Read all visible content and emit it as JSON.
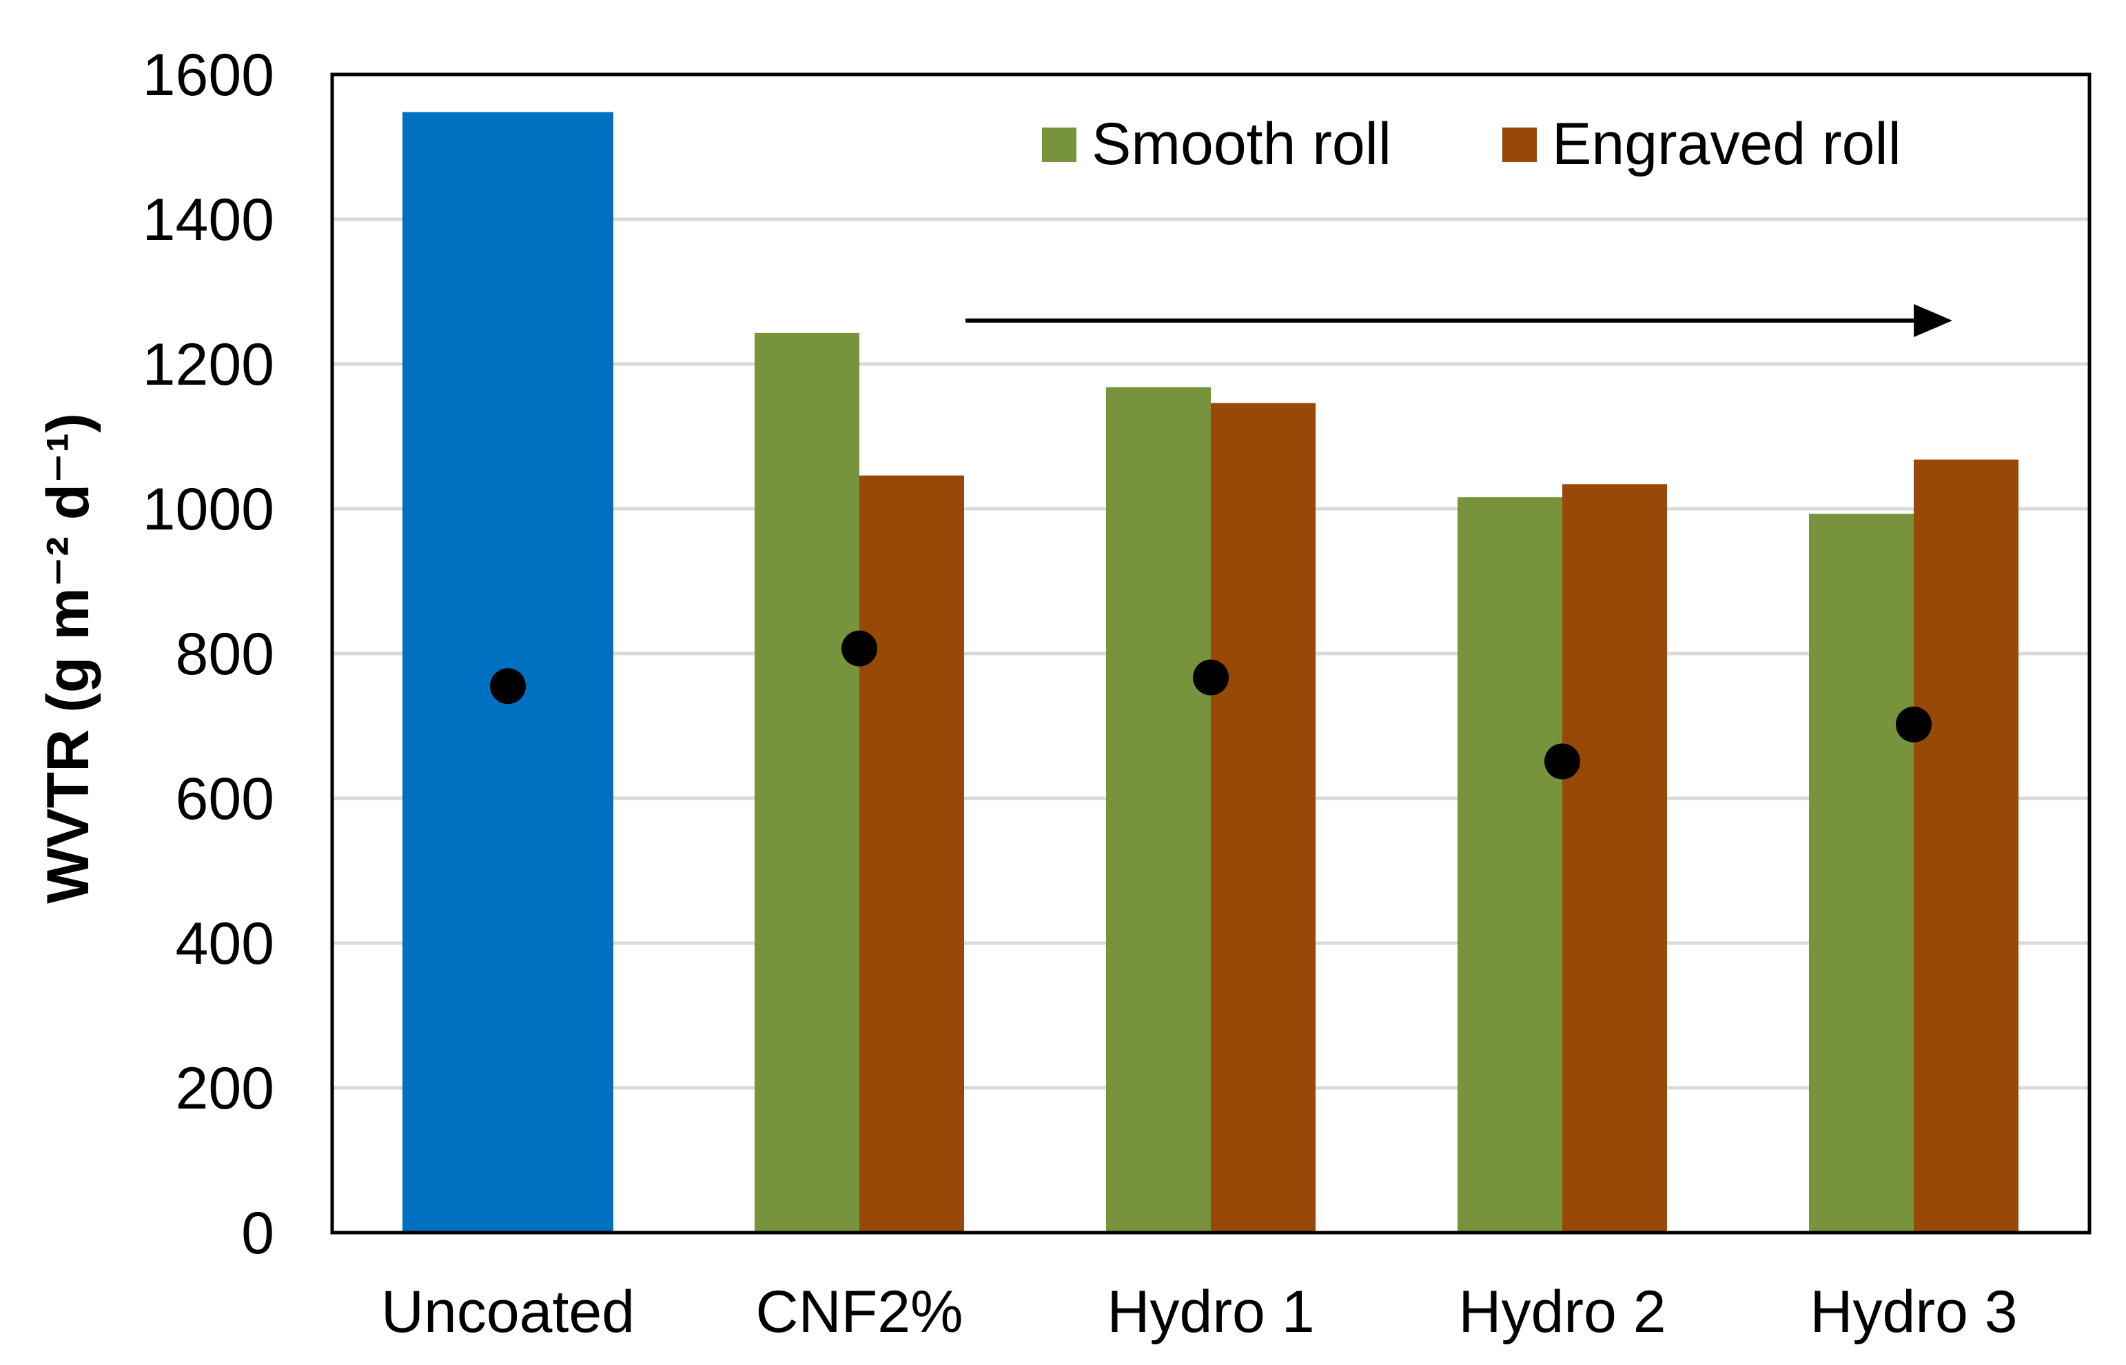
{
  "chart_data": {
    "type": "bar",
    "title": "",
    "xlabel": "",
    "ylabel": "WVTR (g m⁻² d⁻¹)",
    "ylim": [
      0,
      1600
    ],
    "yticks": [
      0,
      200,
      400,
      600,
      800,
      1000,
      1200,
      1400,
      1600
    ],
    "categories": [
      "Uncoated",
      "CNF2%",
      "Hydro 1",
      "Hydro 2",
      "Hydro 3"
    ],
    "grid": true,
    "legend_position": "top-right",
    "series": [
      {
        "name": "Uncoated",
        "color": "#0070c0",
        "show_in_legend": false,
        "values": [
          1548,
          null,
          null,
          null,
          null
        ]
      },
      {
        "name": "Smooth roll",
        "color": "#77933c",
        "show_in_legend": true,
        "values": [
          null,
          1243,
          1168,
          1016,
          993
        ]
      },
      {
        "name": "Engraved roll",
        "color": "#984807",
        "show_in_legend": true,
        "values": [
          null,
          1046,
          1146,
          1034,
          1068
        ]
      }
    ],
    "markers": {
      "name": "dots",
      "color": "#000000",
      "values": [
        755,
        807,
        767,
        651,
        702
      ]
    },
    "annotations": [
      {
        "type": "arrow",
        "direction": "right",
        "from_category": "CNF2%",
        "to_category": "Hydro 3",
        "y": 1260
      }
    ]
  }
}
